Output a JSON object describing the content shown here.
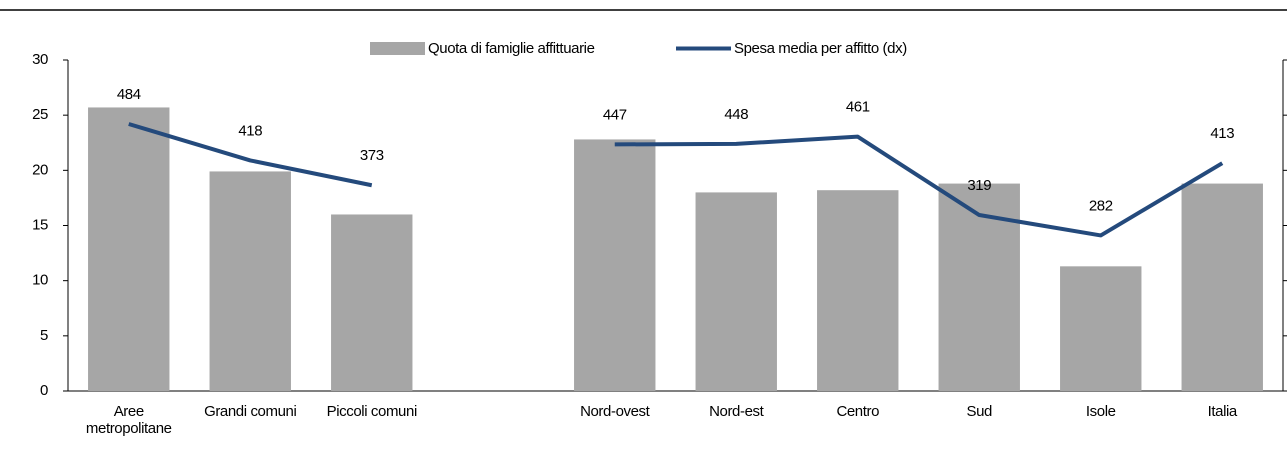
{
  "chart_data": {
    "type": "bar_line",
    "categories": [
      "Aree metropolitane",
      "Grandi comuni",
      "Piccoli comuni",
      null,
      "Nord-ovest",
      "Nord-est",
      "Centro",
      "Sud",
      "Isole",
      "Italia"
    ],
    "series": [
      {
        "name": "Quota di famiglie affittuarie",
        "type": "bar",
        "color": "#a6a6a6",
        "values": [
          25.7,
          19.9,
          16.0,
          null,
          22.8,
          18.0,
          18.2,
          18.8,
          11.3,
          18.8
        ]
      },
      {
        "name": "Spesa media per affitto (dx)",
        "type": "line",
        "axis": "y2",
        "color": "#244a7c",
        "values": [
          484,
          418,
          373,
          null,
          447,
          448,
          461,
          319,
          282,
          413
        ],
        "show_labels": true
      }
    ],
    "ylim": [
      0,
      30
    ],
    "yticks": [
      0,
      5,
      10,
      15,
      20,
      25,
      30
    ],
    "y2lim": [
      0,
      600
    ],
    "legend": "top"
  }
}
